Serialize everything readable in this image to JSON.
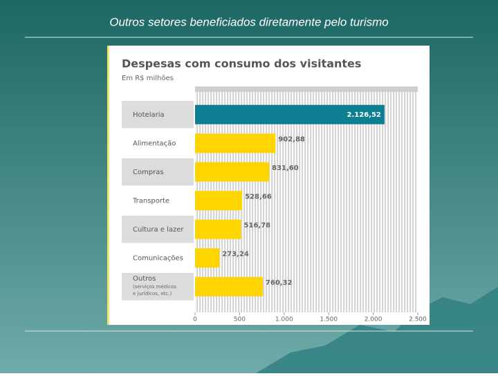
{
  "slide_title": "Outros setores beneficiados diretamente pelo turismo",
  "chart_data": {
    "type": "barh",
    "title": "Despesas com consumo dos visitantes",
    "subtitle": "Em R$ milhões",
    "categories": [
      "Hotelaria",
      "Alimentação",
      "Compras",
      "Transporte",
      "Cultura e lazer",
      "Comunicações",
      "Outros"
    ],
    "category_notes": [
      null,
      null,
      null,
      null,
      null,
      null,
      "(serviços médicos e jurídicos, etc.)"
    ],
    "values": [
      2126.52,
      902.88,
      831.6,
      528.66,
      516.78,
      273.24,
      760.32
    ],
    "value_labels": [
      "2.126,52",
      "902,88",
      "831,60",
      "528,66",
      "516,78",
      "273,24",
      "760,32"
    ],
    "colors": [
      "#0e7f92",
      "#ffd500",
      "#ffd500",
      "#ffd500",
      "#ffd500",
      "#ffd500",
      "#ffd500"
    ],
    "xlim": [
      0,
      2500
    ],
    "xticks": [
      0,
      500,
      {
        "value": 1000,
        "label": "1.000"
      },
      {
        "value": 1500,
        "label": "1.500"
      },
      {
        "value": 2000,
        "label": "2.000"
      },
      {
        "value": 2500,
        "label": "2.500"
      }
    ]
  }
}
